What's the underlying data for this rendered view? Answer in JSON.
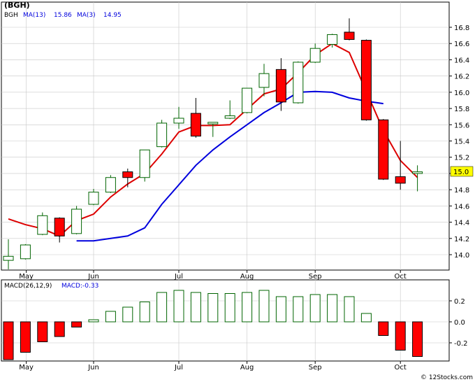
{
  "ticker_label": "(BGH)",
  "watermark": "© 12Stocks.com",
  "colors": {
    "price_frame": "#000000",
    "ma13": "#0000dd",
    "ma3": "#dd0000",
    "up_candle": "#006400",
    "down_candle": "#ff0000",
    "macd_bar": "#006400",
    "macd_neg_bar": "#ff0000",
    "last_price_box": "#ffff00"
  },
  "price_panel": {
    "legend": {
      "symbol": "BGH",
      "ma13_label": "MA(13)",
      "ma13_value": "15.86",
      "ma3_label": "MA(3)",
      "ma3_value": "14.95"
    },
    "last_price_label": "15.0"
  },
  "macd_panel": {
    "legend": {
      "label": "MACD(26,12,9)",
      "value_label": "MACD:-0.33"
    }
  },
  "chart_data": [
    {
      "type": "candlestick",
      "x_ticks": [
        "May",
        "Jun",
        "Jul",
        "Aug",
        "Sep",
        "Oct"
      ],
      "y_ticks": [
        "14.0",
        "14.2",
        "14.4",
        "14.6",
        "14.8",
        "15.0",
        "15.2",
        "15.4",
        "15.6",
        "15.8",
        "16.0",
        "16.2",
        "16.4",
        "16.6",
        "16.8"
      ],
      "ylim": [
        13.8,
        16.95
      ],
      "grid": true,
      "candles": [
        {
          "o": 13.93,
          "h": 14.19,
          "l": 13.82,
          "c": 13.98
        },
        {
          "o": 13.95,
          "h": 14.13,
          "l": 13.94,
          "c": 14.12
        },
        {
          "o": 14.25,
          "h": 14.52,
          "l": 14.24,
          "c": 14.48
        },
        {
          "o": 14.45,
          "h": 14.46,
          "l": 14.15,
          "c": 14.23
        },
        {
          "o": 14.26,
          "h": 14.6,
          "l": 14.25,
          "c": 14.56
        },
        {
          "o": 14.62,
          "h": 14.81,
          "l": 14.61,
          "c": 14.77
        },
        {
          "o": 14.77,
          "h": 14.98,
          "l": 14.76,
          "c": 14.95
        },
        {
          "o": 15.02,
          "h": 15.06,
          "l": 14.83,
          "c": 14.95
        },
        {
          "o": 14.95,
          "h": 15.28,
          "l": 14.9,
          "c": 15.29
        },
        {
          "o": 15.33,
          "h": 15.66,
          "l": 15.32,
          "c": 15.62
        },
        {
          "o": 15.62,
          "h": 15.82,
          "l": 15.55,
          "c": 15.68
        },
        {
          "o": 15.74,
          "h": 15.93,
          "l": 15.44,
          "c": 15.46
        },
        {
          "o": 15.61,
          "h": 15.63,
          "l": 15.45,
          "c": 15.63
        },
        {
          "o": 15.68,
          "h": 15.9,
          "l": 15.67,
          "c": 15.71
        },
        {
          "o": 15.75,
          "h": 16.05,
          "l": 15.74,
          "c": 16.05
        },
        {
          "o": 16.06,
          "h": 16.35,
          "l": 15.95,
          "c": 16.23
        },
        {
          "o": 16.28,
          "h": 16.42,
          "l": 15.77,
          "c": 15.88
        },
        {
          "o": 15.87,
          "h": 16.38,
          "l": 15.86,
          "c": 16.37
        },
        {
          "o": 16.37,
          "h": 16.6,
          "l": 16.36,
          "c": 16.54
        },
        {
          "o": 16.59,
          "h": 16.72,
          "l": 16.55,
          "c": 16.71
        },
        {
          "o": 16.74,
          "h": 16.91,
          "l": 16.64,
          "c": 16.65
        },
        {
          "o": 16.64,
          "h": 16.65,
          "l": 15.65,
          "c": 15.66
        },
        {
          "o": 15.66,
          "h": 15.67,
          "l": 14.92,
          "c": 14.93
        },
        {
          "o": 14.96,
          "h": 15.4,
          "l": 14.8,
          "c": 14.88
        },
        {
          "o": 15.0,
          "h": 15.1,
          "l": 14.78,
          "c": 15.02
        }
      ],
      "series": [
        {
          "name": "MA(13)",
          "values": [
            null,
            null,
            null,
            null,
            14.17,
            14.17,
            14.2,
            14.23,
            14.33,
            14.62,
            14.86,
            15.1,
            15.29,
            15.45,
            15.6,
            15.75,
            15.87,
            16.0,
            16.01,
            16.0,
            15.93,
            15.89,
            15.86,
            null,
            null
          ]
        },
        {
          "name": "MA(3)",
          "values": [
            14.44,
            14.37,
            14.32,
            14.23,
            14.42,
            14.5,
            14.71,
            14.87,
            15.0,
            15.24,
            15.51,
            15.59,
            15.59,
            15.6,
            15.79,
            15.98,
            16.04,
            16.24,
            16.46,
            16.6,
            16.49,
            16.01,
            15.53,
            15.16,
            14.95
          ]
        }
      ]
    },
    {
      "type": "bar",
      "title": "MACD(26,12,9)",
      "x_ticks": [
        "May",
        "Jun",
        "Jul",
        "Aug",
        "Sep",
        "Oct"
      ],
      "y_ticks": [
        "0.2",
        "0.0",
        "-0.2"
      ],
      "ylim": [
        -0.38,
        0.3
      ],
      "values": [
        -0.36,
        -0.29,
        -0.19,
        -0.14,
        -0.05,
        0.02,
        0.1,
        0.14,
        0.19,
        0.28,
        0.3,
        0.28,
        0.27,
        0.27,
        0.28,
        0.3,
        0.24,
        0.24,
        0.26,
        0.26,
        0.24,
        0.08,
        -0.13,
        -0.27,
        -0.33
      ]
    }
  ]
}
